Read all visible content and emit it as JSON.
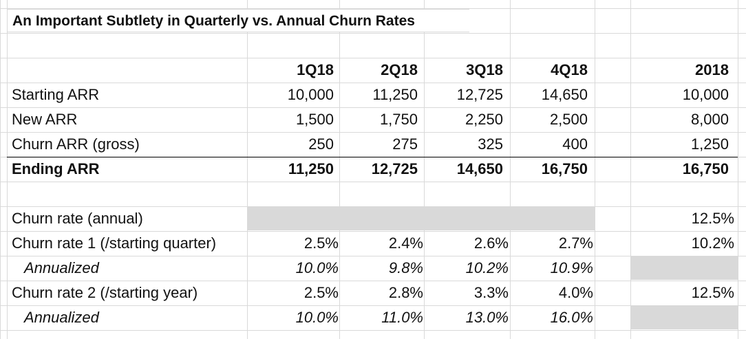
{
  "title": "An Important Subtlety in Quarterly vs. Annual Churn Rates",
  "headers": [
    "1Q18",
    "2Q18",
    "3Q18",
    "4Q18",
    "2018"
  ],
  "arr_rows": [
    {
      "label": "Starting ARR",
      "values": [
        "10,000",
        "11,250",
        "12,725",
        "14,650",
        "10,000"
      ]
    },
    {
      "label": "New ARR",
      "values": [
        "1,500",
        "1,750",
        "2,250",
        "2,500",
        "8,000"
      ]
    },
    {
      "label": "Churn ARR (gross)",
      "values": [
        "250",
        "275",
        "325",
        "400",
        "1,250"
      ]
    },
    {
      "label": "Ending ARR",
      "values": [
        "11,250",
        "12,725",
        "14,650",
        "16,750",
        "16,750"
      ]
    }
  ],
  "rate_rows": [
    {
      "label": "Churn rate (annual)",
      "values": [
        "",
        "",
        "",
        "",
        "12.5%"
      ]
    },
    {
      "label": "Churn rate 1 (/starting quarter)",
      "values": [
        "2.5%",
        "2.4%",
        "2.6%",
        "2.7%",
        "10.2%"
      ]
    },
    {
      "label": "Annualized",
      "values": [
        "10.0%",
        "9.8%",
        "10.2%",
        "10.9%",
        ""
      ]
    },
    {
      "label": "Churn rate 2 (/starting year)",
      "values": [
        "2.5%",
        "2.8%",
        "3.3%",
        "4.0%",
        "12.5%"
      ]
    },
    {
      "label": "Annualized",
      "values": [
        "10.0%",
        "11.0%",
        "13.0%",
        "16.0%",
        ""
      ]
    }
  ]
}
